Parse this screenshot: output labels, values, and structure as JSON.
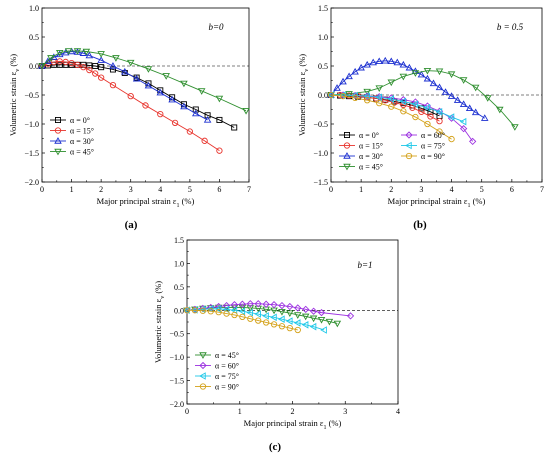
{
  "chart_data": [
    {
      "type": "line",
      "panel_label": "(a)",
      "annotation": "b=0",
      "xlabel": "Major principal strain ε1  (%)",
      "ylabel": "Volumetric strain εv  (%)",
      "xlim": [
        0,
        7
      ],
      "ylim": [
        -2.0,
        1.0
      ],
      "xticks": [
        0,
        1,
        2,
        3,
        4,
        5,
        6,
        7
      ],
      "yticks": [
        -2.0,
        -1.5,
        -1.0,
        -0.5,
        0.0,
        0.5,
        1.0
      ],
      "xtick_labels": [
        "0",
        "1",
        "2",
        "3",
        "4",
        "5",
        "6",
        "7"
      ],
      "ytick_labels": [
        "−2.0",
        "−1.5",
        "−1.0",
        "−0.5",
        "0.0",
        "0.5",
        "1.0"
      ],
      "reference_line": {
        "y": 0,
        "style": "dashed"
      },
      "legend_position": "bottom-left",
      "series": [
        {
          "name": "α = 0°",
          "color": "#000000",
          "marker": "square",
          "x": [
            0,
            0.2,
            0.4,
            0.6,
            0.8,
            1.0,
            1.2,
            1.4,
            1.6,
            1.8,
            2.0,
            2.4,
            2.8,
            3.2,
            3.6,
            4.0,
            4.4,
            4.8,
            5.2,
            5.6,
            6.0,
            6.5
          ],
          "y": [
            0,
            0.01,
            0.02,
            0.02,
            0.02,
            0.02,
            0.02,
            0.02,
            0.01,
            0.0,
            -0.02,
            -0.06,
            -0.12,
            -0.2,
            -0.3,
            -0.42,
            -0.54,
            -0.66,
            -0.75,
            -0.85,
            -0.93,
            -1.06
          ]
        },
        {
          "name": "α = 15°",
          "color": "#e8352e",
          "marker": "circle",
          "x": [
            0,
            0.2,
            0.4,
            0.6,
            0.8,
            1.0,
            1.2,
            1.4,
            1.6,
            1.8,
            2.0,
            2.4,
            3.0,
            3.5,
            4.0,
            4.5,
            5.0,
            5.5,
            6.0
          ],
          "y": [
            0,
            0.04,
            0.07,
            0.08,
            0.07,
            0.05,
            0.02,
            -0.02,
            -0.07,
            -0.13,
            -0.2,
            -0.33,
            -0.52,
            -0.68,
            -0.83,
            -0.98,
            -1.13,
            -1.29,
            -1.46
          ]
        },
        {
          "name": "α = 30°",
          "color": "#1b2fd0",
          "marker": "triangle-up",
          "x": [
            0,
            0.2,
            0.4,
            0.6,
            0.8,
            1.0,
            1.2,
            1.4,
            1.6,
            2.0,
            2.4,
            2.8,
            3.2,
            3.6,
            4.0,
            4.4,
            4.8,
            5.2,
            5.6
          ],
          "y": [
            0,
            0.08,
            0.15,
            0.2,
            0.23,
            0.25,
            0.24,
            0.22,
            0.18,
            0.1,
            0.0,
            -0.1,
            -0.22,
            -0.34,
            -0.46,
            -0.58,
            -0.7,
            -0.82,
            -0.93
          ]
        },
        {
          "name": "α = 45°",
          "color": "#2f8f2f",
          "marker": "triangle-down",
          "x": [
            0,
            0.3,
            0.6,
            0.9,
            1.2,
            1.5,
            2.0,
            2.5,
            3.0,
            3.6,
            4.2,
            4.8,
            5.4,
            6.0,
            6.9
          ],
          "y": [
            0,
            0.14,
            0.23,
            0.26,
            0.26,
            0.25,
            0.21,
            0.14,
            0.06,
            -0.05,
            -0.17,
            -0.3,
            -0.43,
            -0.56,
            -0.77
          ]
        }
      ]
    },
    {
      "type": "line",
      "panel_label": "(b)",
      "annotation": "b = 0.5",
      "xlabel": "Major principal strain ε1  (%)",
      "ylabel": "Volumetric strain εv  (%)",
      "xlim": [
        0,
        7
      ],
      "ylim": [
        -1.5,
        1.5
      ],
      "xticks": [
        0,
        1,
        2,
        3,
        4,
        5,
        6,
        7
      ],
      "yticks": [
        -1.5,
        -1.0,
        -0.5,
        0.0,
        0.5,
        1.0,
        1.5
      ],
      "xtick_labels": [
        "0",
        "1",
        "2",
        "3",
        "4",
        "5",
        "6",
        "7"
      ],
      "ytick_labels": [
        "−1.5",
        "−1.0",
        "−0.5",
        "0.0",
        "0.5",
        "1.0",
        "1.5"
      ],
      "reference_line": {
        "y": 0,
        "style": "dashed"
      },
      "legend_position": "bottom-left",
      "series": [
        {
          "name": "α = 0°",
          "color": "#000000",
          "marker": "square",
          "x": [
            0,
            0.3,
            0.6,
            0.9,
            1.2,
            1.5,
            1.8,
            2.1,
            2.4,
            2.7,
            3.0,
            3.3,
            3.6
          ],
          "y": [
            0,
            -0.01,
            -0.02,
            -0.03,
            -0.04,
            -0.06,
            -0.08,
            -0.11,
            -0.14,
            -0.18,
            -0.23,
            -0.29,
            -0.36
          ]
        },
        {
          "name": "α = 15°",
          "color": "#e8352e",
          "marker": "circle",
          "x": [
            0,
            0.3,
            0.6,
            0.9,
            1.2,
            1.5,
            1.8,
            2.1,
            2.4,
            2.7,
            3.0,
            3.3,
            3.6
          ],
          "y": [
            0,
            0.0,
            -0.01,
            -0.02,
            -0.04,
            -0.06,
            -0.09,
            -0.13,
            -0.17,
            -0.22,
            -0.29,
            -0.37,
            -0.45
          ]
        },
        {
          "name": "α = 30°",
          "color": "#1b2fd0",
          "marker": "triangle-up",
          "x": [
            0,
            0.2,
            0.4,
            0.6,
            0.8,
            1.0,
            1.2,
            1.4,
            1.6,
            1.8,
            2.0,
            2.2,
            2.4,
            2.6,
            2.8,
            3.0,
            3.2,
            3.4,
            3.6,
            3.8,
            4.0,
            4.2,
            4.4,
            4.6,
            4.8,
            5.1
          ],
          "y": [
            0,
            0.12,
            0.23,
            0.32,
            0.4,
            0.47,
            0.52,
            0.56,
            0.58,
            0.59,
            0.58,
            0.56,
            0.52,
            0.47,
            0.41,
            0.35,
            0.28,
            0.2,
            0.13,
            0.05,
            -0.02,
            -0.09,
            -0.16,
            -0.23,
            -0.3,
            -0.4
          ]
        },
        {
          "name": "α = 45°",
          "color": "#2f8f2f",
          "marker": "triangle-down",
          "x": [
            0,
            0.6,
            1.2,
            1.6,
            2.0,
            2.4,
            2.8,
            3.2,
            3.6,
            4.0,
            4.4,
            4.8,
            5.2,
            5.6,
            6.1
          ],
          "y": [
            0,
            0.02,
            0.06,
            0.12,
            0.22,
            0.32,
            0.38,
            0.42,
            0.41,
            0.36,
            0.26,
            0.13,
            -0.05,
            -0.25,
            -0.55
          ]
        },
        {
          "name": "α = 60°",
          "color": "#9b30e0",
          "marker": "diamond",
          "x": [
            0,
            0.4,
            0.8,
            1.2,
            1.6,
            2.0,
            2.4,
            2.8,
            3.2,
            3.6,
            4.0,
            4.4,
            4.7
          ],
          "y": [
            0,
            0.0,
            -0.01,
            -0.02,
            -0.03,
            -0.05,
            -0.08,
            -0.12,
            -0.19,
            -0.28,
            -0.4,
            -0.58,
            -0.8
          ]
        },
        {
          "name": "α = 75°",
          "color": "#1ec8e8",
          "marker": "triangle-left",
          "x": [
            0,
            0.4,
            0.8,
            1.2,
            1.6,
            2.0,
            2.4,
            2.8,
            3.2,
            3.6,
            4.0,
            4.4
          ],
          "y": [
            0,
            0.0,
            -0.01,
            -0.02,
            -0.04,
            -0.07,
            -0.11,
            -0.16,
            -0.22,
            -0.29,
            -0.38,
            -0.46
          ]
        },
        {
          "name": "α = 90°",
          "color": "#d4a21b",
          "marker": "circle",
          "x": [
            0,
            0.4,
            0.8,
            1.2,
            1.6,
            2.0,
            2.4,
            2.8,
            3.2,
            3.6,
            4.0
          ],
          "y": [
            0,
            -0.02,
            -0.05,
            -0.09,
            -0.14,
            -0.2,
            -0.28,
            -0.38,
            -0.5,
            -0.63,
            -0.76
          ]
        }
      ]
    },
    {
      "type": "line",
      "panel_label": "(c)",
      "annotation": "b=1",
      "xlabel": "Major principal strain ε1  (%)",
      "ylabel": "Volumetric strain εv  (%)",
      "xlim": [
        0,
        4
      ],
      "ylim": [
        -2.0,
        1.5
      ],
      "xticks": [
        0,
        1,
        2,
        3,
        4
      ],
      "yticks": [
        -2.0,
        -1.5,
        -1.0,
        -0.5,
        0.0,
        0.5,
        1.0,
        1.5
      ],
      "xtick_labels": [
        "0",
        "1",
        "2",
        "3",
        "4"
      ],
      "ytick_labels": [
        "−2.0",
        "−1.5",
        "−1.0",
        "−0.5",
        "0.0",
        "0.5",
        "1.0",
        "1.5"
      ],
      "reference_line": {
        "y": 0,
        "style": "dashed"
      },
      "legend_position": "bottom-left",
      "series": [
        {
          "name": "α = 45°",
          "color": "#2f8f2f",
          "marker": "triangle-down",
          "x": [
            0,
            0.15,
            0.3,
            0.45,
            0.6,
            0.75,
            0.9,
            1.05,
            1.2,
            1.35,
            1.5,
            1.65,
            1.8,
            1.95,
            2.1,
            2.25,
            2.4,
            2.55,
            2.7,
            2.85
          ],
          "y": [
            0,
            0.02,
            0.04,
            0.05,
            0.06,
            0.06,
            0.06,
            0.06,
            0.05,
            0.04,
            0.02,
            0.0,
            -0.03,
            -0.06,
            -0.1,
            -0.13,
            -0.17,
            -0.2,
            -0.24,
            -0.28
          ]
        },
        {
          "name": "α = 60°",
          "color": "#9b30e0",
          "marker": "diamond",
          "x": [
            0,
            0.15,
            0.3,
            0.45,
            0.6,
            0.75,
            0.9,
            1.05,
            1.2,
            1.35,
            1.5,
            1.65,
            1.8,
            1.95,
            2.1,
            2.25,
            2.4,
            2.55,
            3.1
          ],
          "y": [
            0,
            0.02,
            0.04,
            0.06,
            0.08,
            0.1,
            0.12,
            0.13,
            0.14,
            0.14,
            0.13,
            0.12,
            0.1,
            0.08,
            0.05,
            0.02,
            -0.02,
            -0.05,
            -0.12
          ]
        },
        {
          "name": "α = 75°",
          "color": "#1ec8e8",
          "marker": "triangle-left",
          "x": [
            0,
            0.15,
            0.3,
            0.45,
            0.6,
            0.75,
            0.9,
            1.05,
            1.2,
            1.35,
            1.5,
            1.65,
            1.8,
            1.95,
            2.1,
            2.25,
            2.4,
            2.6
          ],
          "y": [
            0,
            0.01,
            0.02,
            0.03,
            0.03,
            0.02,
            0.0,
            -0.02,
            -0.05,
            -0.08,
            -0.12,
            -0.15,
            -0.19,
            -0.23,
            -0.27,
            -0.31,
            -0.35,
            -0.42
          ]
        },
        {
          "name": "α = 90°",
          "color": "#d4a21b",
          "marker": "circle",
          "x": [
            0,
            0.15,
            0.3,
            0.45,
            0.6,
            0.75,
            0.9,
            1.05,
            1.2,
            1.35,
            1.5,
            1.65,
            1.8,
            1.95,
            2.1
          ],
          "y": [
            0,
            0.0,
            -0.01,
            -0.02,
            -0.04,
            -0.07,
            -0.1,
            -0.14,
            -0.18,
            -0.22,
            -0.26,
            -0.3,
            -0.34,
            -0.38,
            -0.42
          ]
        }
      ]
    }
  ]
}
